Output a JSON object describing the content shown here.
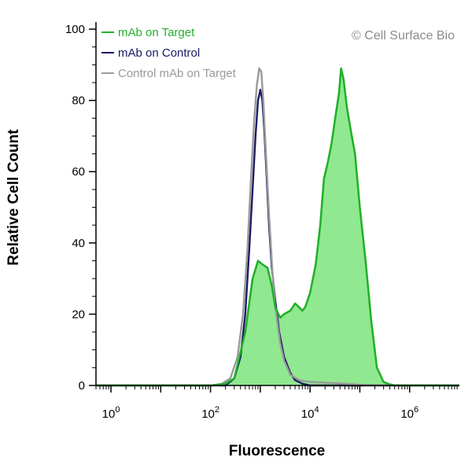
{
  "chart_data": {
    "type": "area",
    "watermark": "© Cell Surface Bio",
    "xlabel": "Fluorescence",
    "ylabel": "Relative Cell Count",
    "x_scale": "log",
    "xlim": [
      0.5,
      10000000
    ],
    "ylim": [
      0,
      102
    ],
    "x_ticks": [
      {
        "base": "10",
        "exp": "0",
        "value": 1
      },
      {
        "base": "10",
        "exp": "2",
        "value": 100
      },
      {
        "base": "10",
        "exp": "4",
        "value": 10000
      },
      {
        "base": "10",
        "exp": "6",
        "value": 1000000
      }
    ],
    "y_ticks": [
      "0",
      "20",
      "40",
      "60",
      "80",
      "100"
    ],
    "grid": false,
    "legend": "top-left",
    "series": [
      {
        "name": "mAb on Target",
        "color": "#22b02a",
        "fill": "#90e890",
        "filled": true,
        "points": [
          [
            0.5,
            0
          ],
          [
            100,
            0
          ],
          [
            200,
            0.5
          ],
          [
            300,
            2
          ],
          [
            500,
            15
          ],
          [
            700,
            30
          ],
          [
            900,
            35
          ],
          [
            1100,
            34
          ],
          [
            1400,
            33
          ],
          [
            1700,
            28
          ],
          [
            2000,
            22
          ],
          [
            2500,
            19
          ],
          [
            3000,
            20
          ],
          [
            4000,
            21
          ],
          [
            5000,
            23
          ],
          [
            6000,
            22
          ],
          [
            7000,
            21
          ],
          [
            8000,
            22
          ],
          [
            10000,
            26
          ],
          [
            13000,
            34
          ],
          [
            16000,
            45
          ],
          [
            19000,
            58
          ],
          [
            23000,
            63
          ],
          [
            27000,
            68
          ],
          [
            32000,
            75
          ],
          [
            38000,
            82
          ],
          [
            42000,
            89
          ],
          [
            47000,
            86
          ],
          [
            55000,
            78
          ],
          [
            65000,
            72
          ],
          [
            80000,
            65
          ],
          [
            100000,
            50
          ],
          [
            130000,
            35
          ],
          [
            170000,
            18
          ],
          [
            220000,
            5
          ],
          [
            300000,
            1
          ],
          [
            400000,
            0.3
          ],
          [
            500000,
            0
          ],
          [
            10000000,
            0
          ]
        ]
      },
      {
        "name": "mAb on Control",
        "color": "#1a1a66",
        "filled": false,
        "points": [
          [
            0.5,
            0
          ],
          [
            200,
            0
          ],
          [
            300,
            2
          ],
          [
            400,
            8
          ],
          [
            500,
            20
          ],
          [
            600,
            38
          ],
          [
            700,
            55
          ],
          [
            800,
            70
          ],
          [
            900,
            80
          ],
          [
            1000,
            83
          ],
          [
            1100,
            80
          ],
          [
            1200,
            72
          ],
          [
            1350,
            58
          ],
          [
            1500,
            45
          ],
          [
            1700,
            33
          ],
          [
            2000,
            24
          ],
          [
            2400,
            15
          ],
          [
            3000,
            8
          ],
          [
            4000,
            3.5
          ],
          [
            5000,
            1.5
          ],
          [
            7000,
            0.5
          ],
          [
            10000,
            0
          ],
          [
            10000000,
            0
          ]
        ]
      },
      {
        "name": "Control mAb on Target",
        "color": "#9a9a9a",
        "filled": false,
        "points": [
          [
            0.5,
            0
          ],
          [
            150,
            0
          ],
          [
            250,
            2
          ],
          [
            350,
            8
          ],
          [
            450,
            20
          ],
          [
            550,
            38
          ],
          [
            650,
            58
          ],
          [
            750,
            74
          ],
          [
            850,
            84
          ],
          [
            950,
            89
          ],
          [
            1050,
            88
          ],
          [
            1150,
            80
          ],
          [
            1300,
            65
          ],
          [
            1500,
            48
          ],
          [
            1750,
            32
          ],
          [
            2000,
            22
          ],
          [
            2500,
            12
          ],
          [
            3000,
            7
          ],
          [
            4000,
            3
          ],
          [
            6000,
            1.5
          ],
          [
            10000,
            1
          ],
          [
            20000,
            0.8
          ],
          [
            40000,
            0.6
          ],
          [
            80000,
            0.3
          ],
          [
            150000,
            0
          ],
          [
            10000000,
            0
          ]
        ]
      }
    ]
  }
}
